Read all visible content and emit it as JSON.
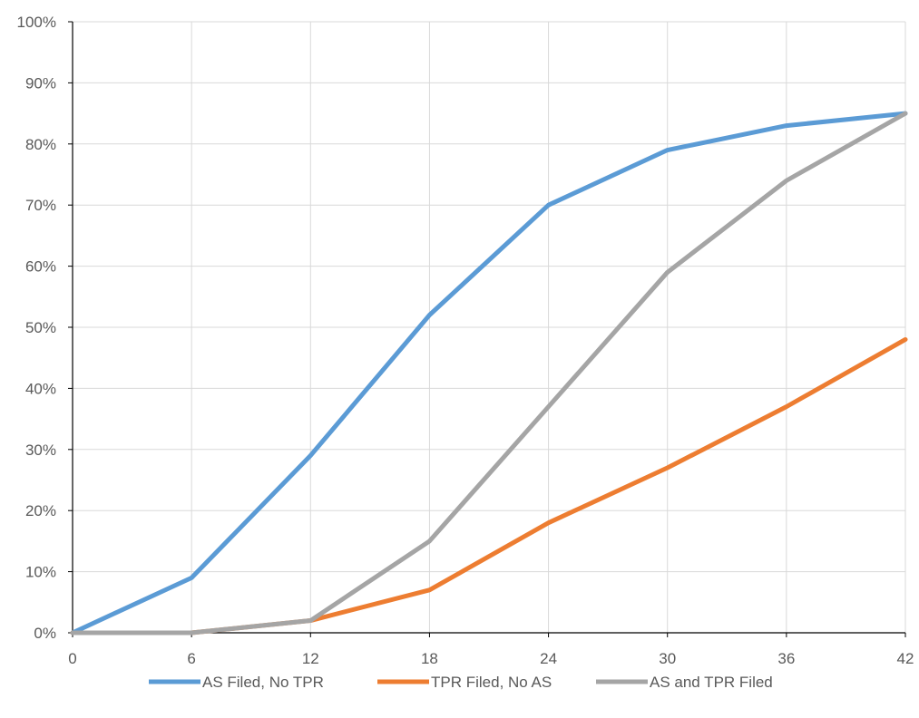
{
  "chart_data": {
    "type": "line",
    "title": "",
    "xlabel": "",
    "ylabel": "",
    "x": [
      0,
      6,
      12,
      18,
      24,
      30,
      36,
      42
    ],
    "x_tick_labels": [
      "0",
      "6",
      "12",
      "18",
      "24",
      "30",
      "36",
      "42"
    ],
    "ylim": [
      0,
      100
    ],
    "y_ticks": [
      0,
      10,
      20,
      30,
      40,
      50,
      60,
      70,
      80,
      90,
      100
    ],
    "y_tick_labels": [
      "0%",
      "10%",
      "20%",
      "30%",
      "40%",
      "50%",
      "60%",
      "70%",
      "80%",
      "90%",
      "100%"
    ],
    "grid": {
      "horizontal": true,
      "vertical": true
    },
    "legend_position": "bottom",
    "series": [
      {
        "name": "AS Filed, No TPR",
        "color": "#5B9BD5",
        "values": [
          0,
          9,
          29,
          52,
          70,
          79,
          83,
          85
        ]
      },
      {
        "name": "TPR Filed, No AS",
        "color": "#ED7D31",
        "values": [
          0,
          0,
          2,
          7,
          18,
          27,
          37,
          48
        ]
      },
      {
        "name": "AS and TPR Filed",
        "color": "#A5A5A5",
        "values": [
          0,
          0,
          2,
          15,
          37,
          59,
          74,
          85
        ]
      }
    ]
  }
}
